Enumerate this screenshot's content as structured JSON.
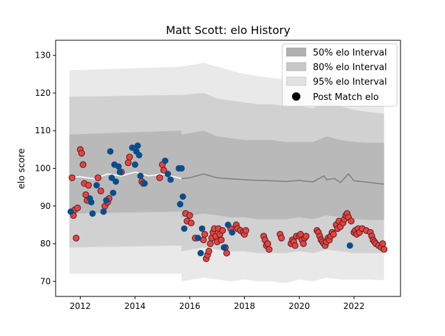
{
  "chart_data": {
    "type": "scatter",
    "title": "Matt Scott: elo History",
    "xlabel": "",
    "ylabel": "elo score",
    "xlim": [
      2011.1,
      2023.7
    ],
    "ylim": [
      66.0,
      134.0
    ],
    "x_ticks": [
      2012,
      2014,
      2016,
      2018,
      2020,
      2022
    ],
    "y_ticks": [
      70,
      80,
      90,
      100,
      110,
      120,
      130
    ],
    "grid": false,
    "legend_position": "top-right",
    "legend": [
      {
        "label": "50% elo Interval",
        "color": "#b0b0b0",
        "kind": "patch"
      },
      {
        "label": "80% elo Interval",
        "color": "#c8c8c8",
        "kind": "patch"
      },
      {
        "label": "95% elo Interval",
        "color": "#e2e2e2",
        "kind": "patch"
      },
      {
        "label": "Post Match elo",
        "color": "#000000",
        "kind": "marker"
      }
    ],
    "colors": {
      "win": "#e8443a",
      "win_edge": "#5a2030",
      "loss": "#0a4d8c",
      "band_50": "#b0b0b0",
      "band_80": "#c8c8c8",
      "band_95": "#e2e2e2",
      "mean_line": "#808080",
      "early_mean_line": "#ffffff"
    },
    "series": [
      {
        "kind": "band",
        "level": "95%",
        "x": [
          2011.6,
          2015.7,
          2015.7,
          2016.5,
          2017.0,
          2017.5,
          2018.0,
          2018.5,
          2019.0,
          2019.5,
          2020.0,
          2020.5,
          2021.0,
          2021.5,
          2022.0,
          2022.5,
          2023.1
        ],
        "upper": [
          126.0,
          127.0,
          127.0,
          128.0,
          127.0,
          126.0,
          125.0,
          124.5,
          124.0,
          123.5,
          123.5,
          123.0,
          124.0,
          123.0,
          122.5,
          122.0,
          121.5
        ],
        "lower": [
          72.0,
          72.0,
          70.0,
          71.0,
          70.5,
          70.0,
          70.5,
          70.0,
          70.0,
          69.5,
          70.5,
          70.0,
          71.0,
          70.5,
          70.5,
          70.5,
          70.3
        ]
      },
      {
        "kind": "band",
        "level": "80%",
        "x": [
          2011.6,
          2015.7,
          2015.7,
          2016.5,
          2017.0,
          2017.5,
          2018.0,
          2018.5,
          2019.0,
          2019.5,
          2020.0,
          2020.5,
          2021.0,
          2021.5,
          2022.0,
          2022.5,
          2023.1
        ],
        "upper": [
          119.0,
          119.5,
          119.5,
          120.0,
          118.5,
          118.0,
          117.5,
          117.0,
          117.0,
          116.5,
          116.5,
          116.0,
          117.5,
          116.5,
          115.5,
          115.0,
          114.5
        ],
        "lower": [
          79.0,
          79.5,
          78.0,
          79.0,
          78.5,
          78.0,
          78.0,
          77.5,
          77.5,
          77.5,
          78.0,
          77.5,
          78.5,
          78.0,
          77.5,
          77.5,
          77.5
        ]
      },
      {
        "kind": "band",
        "level": "50%",
        "x": [
          2011.6,
          2015.7,
          2015.7,
          2016.5,
          2017.0,
          2017.5,
          2018.0,
          2018.5,
          2019.0,
          2019.5,
          2020.0,
          2020.5,
          2021.0,
          2021.5,
          2022.0,
          2022.5,
          2023.1
        ],
        "upper": [
          109.0,
          110.0,
          109.0,
          110.0,
          108.5,
          108.0,
          107.5,
          107.5,
          107.5,
          107.0,
          107.0,
          107.0,
          108.5,
          107.5,
          107.0,
          106.8,
          106.8
        ],
        "lower": [
          88.0,
          88.5,
          87.0,
          88.0,
          87.5,
          87.0,
          87.0,
          86.5,
          86.5,
          86.5,
          87.0,
          86.5,
          87.5,
          87.0,
          86.5,
          86.3,
          86.3
        ]
      },
      {
        "kind": "line",
        "role": "mean",
        "x": [
          2011.6,
          2012.0,
          2012.5,
          2013.0,
          2013.5,
          2014.0,
          2014.5,
          2015.0,
          2015.3,
          2015.7,
          2016.0,
          2016.5,
          2017.0,
          2017.5,
          2018.0,
          2018.5,
          2019.0,
          2019.5,
          2020.0,
          2020.5,
          2020.9,
          2021.0,
          2021.3,
          2021.5,
          2021.8,
          2022.0,
          2022.5,
          2023.1
        ],
        "y": [
          97.5,
          97.8,
          97.2,
          98.5,
          98.0,
          99.0,
          98.0,
          98.5,
          98.0,
          97.3,
          97.5,
          98.5,
          97.5,
          97.2,
          97.0,
          96.8,
          96.7,
          96.5,
          96.8,
          96.4,
          98.0,
          97.0,
          97.3,
          96.2,
          98.5,
          96.7,
          96.3,
          95.8
        ]
      },
      {
        "kind": "scatter",
        "role": "wins",
        "points": [
          [
            2011.7,
            97.5
          ],
          [
            2011.75,
            87.5
          ],
          [
            2011.8,
            89.0
          ],
          [
            2011.85,
            81.5
          ],
          [
            2011.9,
            89.5
          ],
          [
            2012.0,
            105.0
          ],
          [
            2012.05,
            104.0
          ],
          [
            2012.1,
            101.0
          ],
          [
            2012.15,
            96.0
          ],
          [
            2012.2,
            93.0
          ],
          [
            2012.25,
            91.5
          ],
          [
            2012.3,
            95.5
          ],
          [
            2012.9,
            90.0
          ],
          [
            2013.0,
            91.0
          ],
          [
            2013.05,
            92.0
          ],
          [
            2012.65,
            97.5
          ],
          [
            2012.75,
            94.0
          ],
          [
            2013.5,
            99.0
          ],
          [
            2013.75,
            101.5
          ],
          [
            2013.8,
            103.0
          ],
          [
            2014.25,
            96.5
          ],
          [
            2014.3,
            96.0
          ],
          [
            2014.9,
            97.5
          ],
          [
            2015.0,
            101.0
          ],
          [
            2015.05,
            99.5
          ],
          [
            2015.85,
            88.0
          ],
          [
            2015.9,
            86.0
          ],
          [
            2016.0,
            87.5
          ],
          [
            2016.05,
            85.5
          ],
          [
            2016.2,
            81.5
          ],
          [
            2016.5,
            81.0
          ],
          [
            2016.55,
            82.5
          ],
          [
            2016.6,
            76.0
          ],
          [
            2016.65,
            77.0
          ],
          [
            2016.7,
            78.0
          ],
          [
            2016.75,
            80.0
          ],
          [
            2016.8,
            81.5
          ],
          [
            2016.85,
            83.0
          ],
          [
            2016.9,
            84.0
          ],
          [
            2016.95,
            82.0
          ],
          [
            2017.0,
            80.5
          ],
          [
            2017.05,
            84.0
          ],
          [
            2017.1,
            82.5
          ],
          [
            2017.15,
            81.0
          ],
          [
            2017.2,
            83.5
          ],
          [
            2017.3,
            79.0
          ],
          [
            2017.35,
            77.5
          ],
          [
            2017.5,
            84.0
          ],
          [
            2017.7,
            85.0
          ],
          [
            2017.75,
            84.0
          ],
          [
            2017.85,
            83.5
          ],
          [
            2017.95,
            83.0
          ],
          [
            2018.0,
            82.5
          ],
          [
            2018.05,
            83.5
          ],
          [
            2018.7,
            82.0
          ],
          [
            2018.75,
            81.0
          ],
          [
            2018.8,
            79.5
          ],
          [
            2018.85,
            80.0
          ],
          [
            2018.9,
            78.5
          ],
          [
            2019.3,
            82.5
          ],
          [
            2019.35,
            81.5
          ],
          [
            2019.7,
            80.0
          ],
          [
            2019.75,
            81.0
          ],
          [
            2019.8,
            80.5
          ],
          [
            2019.85,
            79.5
          ],
          [
            2019.9,
            82.0
          ],
          [
            2020.0,
            82.0
          ],
          [
            2020.05,
            82.5
          ],
          [
            2020.1,
            81.0
          ],
          [
            2020.15,
            80.0
          ],
          [
            2020.2,
            81.5
          ],
          [
            2020.25,
            82.0
          ],
          [
            2020.65,
            83.5
          ],
          [
            2020.7,
            83.0
          ],
          [
            2020.75,
            82.0
          ],
          [
            2020.8,
            81.0
          ],
          [
            2020.85,
            80.5
          ],
          [
            2020.9,
            80.0
          ],
          [
            2020.95,
            79.5
          ],
          [
            2021.0,
            80.5
          ],
          [
            2021.05,
            81.5
          ],
          [
            2021.1,
            81.0
          ],
          [
            2021.15,
            82.0
          ],
          [
            2021.2,
            83.0
          ],
          [
            2021.25,
            82.5
          ],
          [
            2021.35,
            85.0
          ],
          [
            2021.4,
            84.0
          ],
          [
            2021.45,
            86.0
          ],
          [
            2021.5,
            84.5
          ],
          [
            2021.6,
            85.5
          ],
          [
            2021.65,
            86.5
          ],
          [
            2021.7,
            87.5
          ],
          [
            2021.75,
            88.0
          ],
          [
            2021.8,
            87.0
          ],
          [
            2021.9,
            86.0
          ],
          [
            2022.0,
            83.0
          ],
          [
            2022.05,
            83.5
          ],
          [
            2022.1,
            82.5
          ],
          [
            2022.15,
            84.0
          ],
          [
            2022.2,
            83.0
          ],
          [
            2022.3,
            84.0
          ],
          [
            2022.45,
            83.5
          ],
          [
            2022.6,
            83.0
          ],
          [
            2022.65,
            82.0
          ],
          [
            2022.7,
            81.0
          ],
          [
            2022.75,
            80.5
          ],
          [
            2022.8,
            80.0
          ],
          [
            2022.9,
            79.5
          ],
          [
            2023.0,
            79.0
          ],
          [
            2023.05,
            80.0
          ],
          [
            2023.1,
            78.5
          ]
        ]
      },
      {
        "kind": "scatter",
        "role": "losses",
        "points": [
          [
            2011.65,
            88.5
          ],
          [
            2012.35,
            92.0
          ],
          [
            2012.4,
            91.0
          ],
          [
            2012.45,
            88.0
          ],
          [
            2012.6,
            95.5
          ],
          [
            2012.85,
            88.5
          ],
          [
            2012.95,
            91.5
          ],
          [
            2013.1,
            104.5
          ],
          [
            2013.15,
            97.5
          ],
          [
            2013.2,
            93.5
          ],
          [
            2013.25,
            101.0
          ],
          [
            2013.3,
            96.5
          ],
          [
            2013.4,
            100.5
          ],
          [
            2013.45,
            99.0
          ],
          [
            2013.9,
            105.5
          ],
          [
            2014.0,
            101.0
          ],
          [
            2014.05,
            104.5
          ],
          [
            2014.1,
            106.0
          ],
          [
            2014.15,
            103.5
          ],
          [
            2014.2,
            98.0
          ],
          [
            2014.35,
            96.0
          ],
          [
            2015.1,
            102.0
          ],
          [
            2015.2,
            98.5
          ],
          [
            2015.3,
            97.0
          ],
          [
            2015.6,
            100.0
          ],
          [
            2015.65,
            90.5
          ],
          [
            2015.7,
            100.0
          ],
          [
            2015.75,
            92.5
          ],
          [
            2015.8,
            84.0
          ],
          [
            2016.3,
            81.5
          ],
          [
            2016.45,
            84.0
          ],
          [
            2016.4,
            77.5
          ],
          [
            2017.25,
            79.0
          ],
          [
            2017.4,
            85.0
          ],
          [
            2017.55,
            83.0
          ],
          [
            2021.85,
            79.5
          ]
        ]
      }
    ]
  }
}
